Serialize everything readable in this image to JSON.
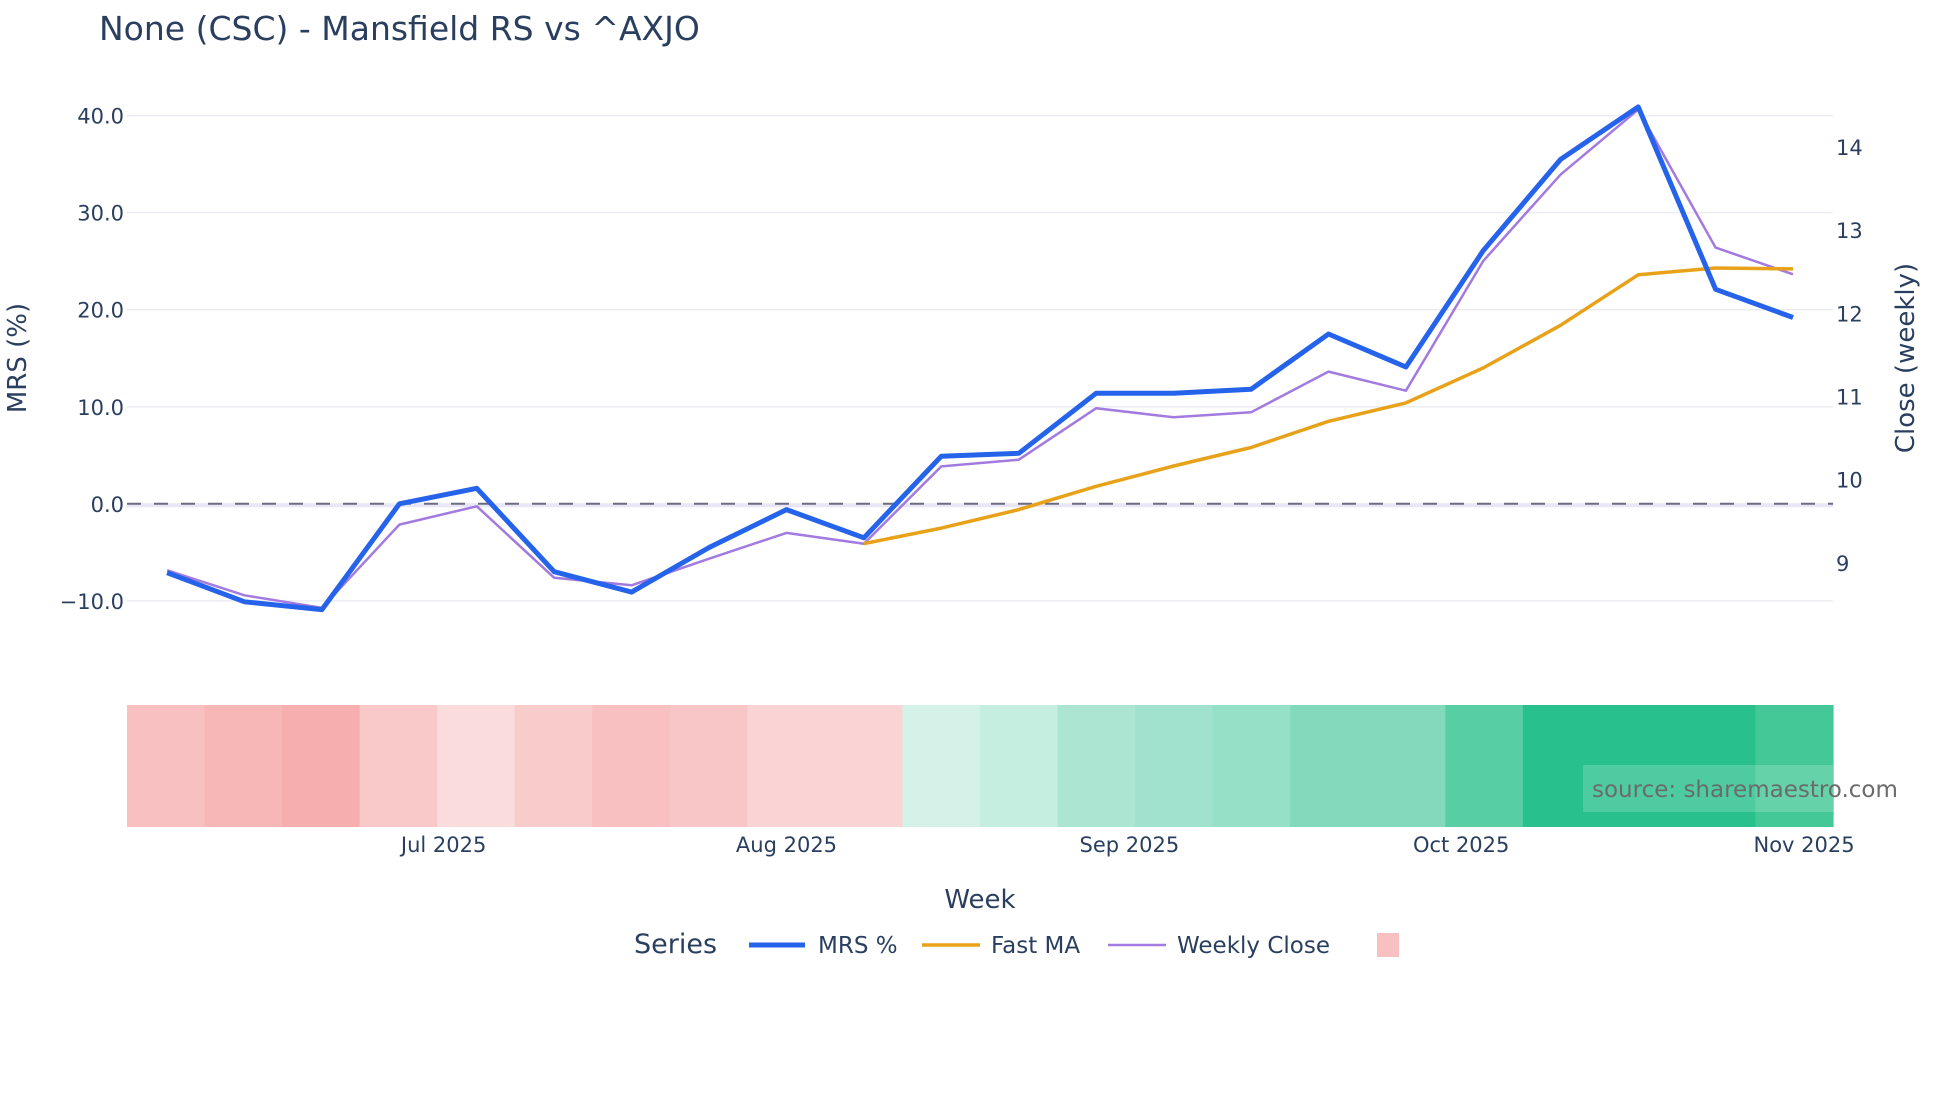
{
  "chart_data": {
    "type": "line",
    "title": "None (CSC) - Mansfield RS vs ^AXJO",
    "xlabel": "Week",
    "ylabel": "MRS (%)",
    "y2label": "Close (weekly)",
    "x": [
      "2025-06-06",
      "2025-06-13",
      "2025-06-20",
      "2025-06-27",
      "2025-07-04",
      "2025-07-11",
      "2025-07-18",
      "2025-07-25",
      "2025-08-01",
      "2025-08-08",
      "2025-08-15",
      "2025-08-22",
      "2025-08-29",
      "2025-09-05",
      "2025-09-12",
      "2025-09-19",
      "2025-09-26",
      "2025-10-03",
      "2025-10-10",
      "2025-10-17",
      "2025-10-24",
      "2025-10-31"
    ],
    "x_ticks": [
      "Jul 2025",
      "Aug 2025",
      "Sep 2025",
      "Oct 2025",
      "Nov 2025"
    ],
    "y_ticks": [
      "−10.0",
      "0.0",
      "10.0",
      "20.0",
      "30.0",
      "40.0"
    ],
    "y_tick_values": [
      -10,
      0,
      10,
      20,
      30,
      40
    ],
    "y2_ticks": [
      "9",
      "10",
      "11",
      "12",
      "13",
      "14"
    ],
    "y2_tick_values": [
      9,
      10,
      11,
      12,
      13,
      14
    ],
    "ylim": [
      -14,
      42
    ],
    "y2lim": [
      8.4,
      14.6
    ],
    "grid": true,
    "reference_line": 0,
    "series": [
      {
        "name": "MRS %",
        "axis": "left",
        "color": "#2563eb",
        "values": [
          -7.1,
          -10.1,
          -10.9,
          0.0,
          1.6,
          -7.0,
          -9.1,
          -4.5,
          -0.6,
          -3.5,
          4.9,
          5.2,
          11.4,
          11.4,
          11.8,
          17.5,
          14.1,
          26.1,
          35.5,
          40.9,
          22.1,
          19.2
        ]
      },
      {
        "name": "Fast MA",
        "axis": "left",
        "color": "#e8a21a",
        "values": [
          null,
          null,
          null,
          null,
          null,
          null,
          null,
          null,
          null,
          -4.1,
          -2.5,
          -0.6,
          1.8,
          3.9,
          5.8,
          8.5,
          10.4,
          14.0,
          18.4,
          23.6,
          24.3,
          24.2
        ]
      },
      {
        "name": "Weekly Close",
        "axis": "right",
        "color": "#a27ae0",
        "values": [
          8.91,
          8.61,
          8.46,
          9.46,
          9.68,
          8.82,
          8.73,
          9.05,
          9.36,
          9.23,
          10.16,
          10.24,
          10.86,
          10.75,
          10.81,
          11.3,
          11.07,
          12.63,
          13.67,
          14.45,
          12.79,
          12.47
        ]
      }
    ],
    "heatmap_colors": [
      "#f8c0c0",
      "#f7b7b7",
      "#f6aeae",
      "#f9c8c8",
      "#fadcdc",
      "#f9cccc",
      "#f8c0c0",
      "#f8c6c6",
      "#fad4d4",
      "#fad4d4",
      "#d5f2e8",
      "#c6eee0",
      "#ace6d3",
      "#a0e2cd",
      "#96e0c8",
      "#82d9bc",
      "#82d9bc",
      "#58cea5",
      "#28c08c",
      "#28c08c",
      "#28c08c",
      "#44c898"
    ],
    "legend": {
      "title": "Series",
      "position": "bottom",
      "swatch_color": "#f8c0c0"
    },
    "annotation": "source: sharemaestro.com"
  }
}
